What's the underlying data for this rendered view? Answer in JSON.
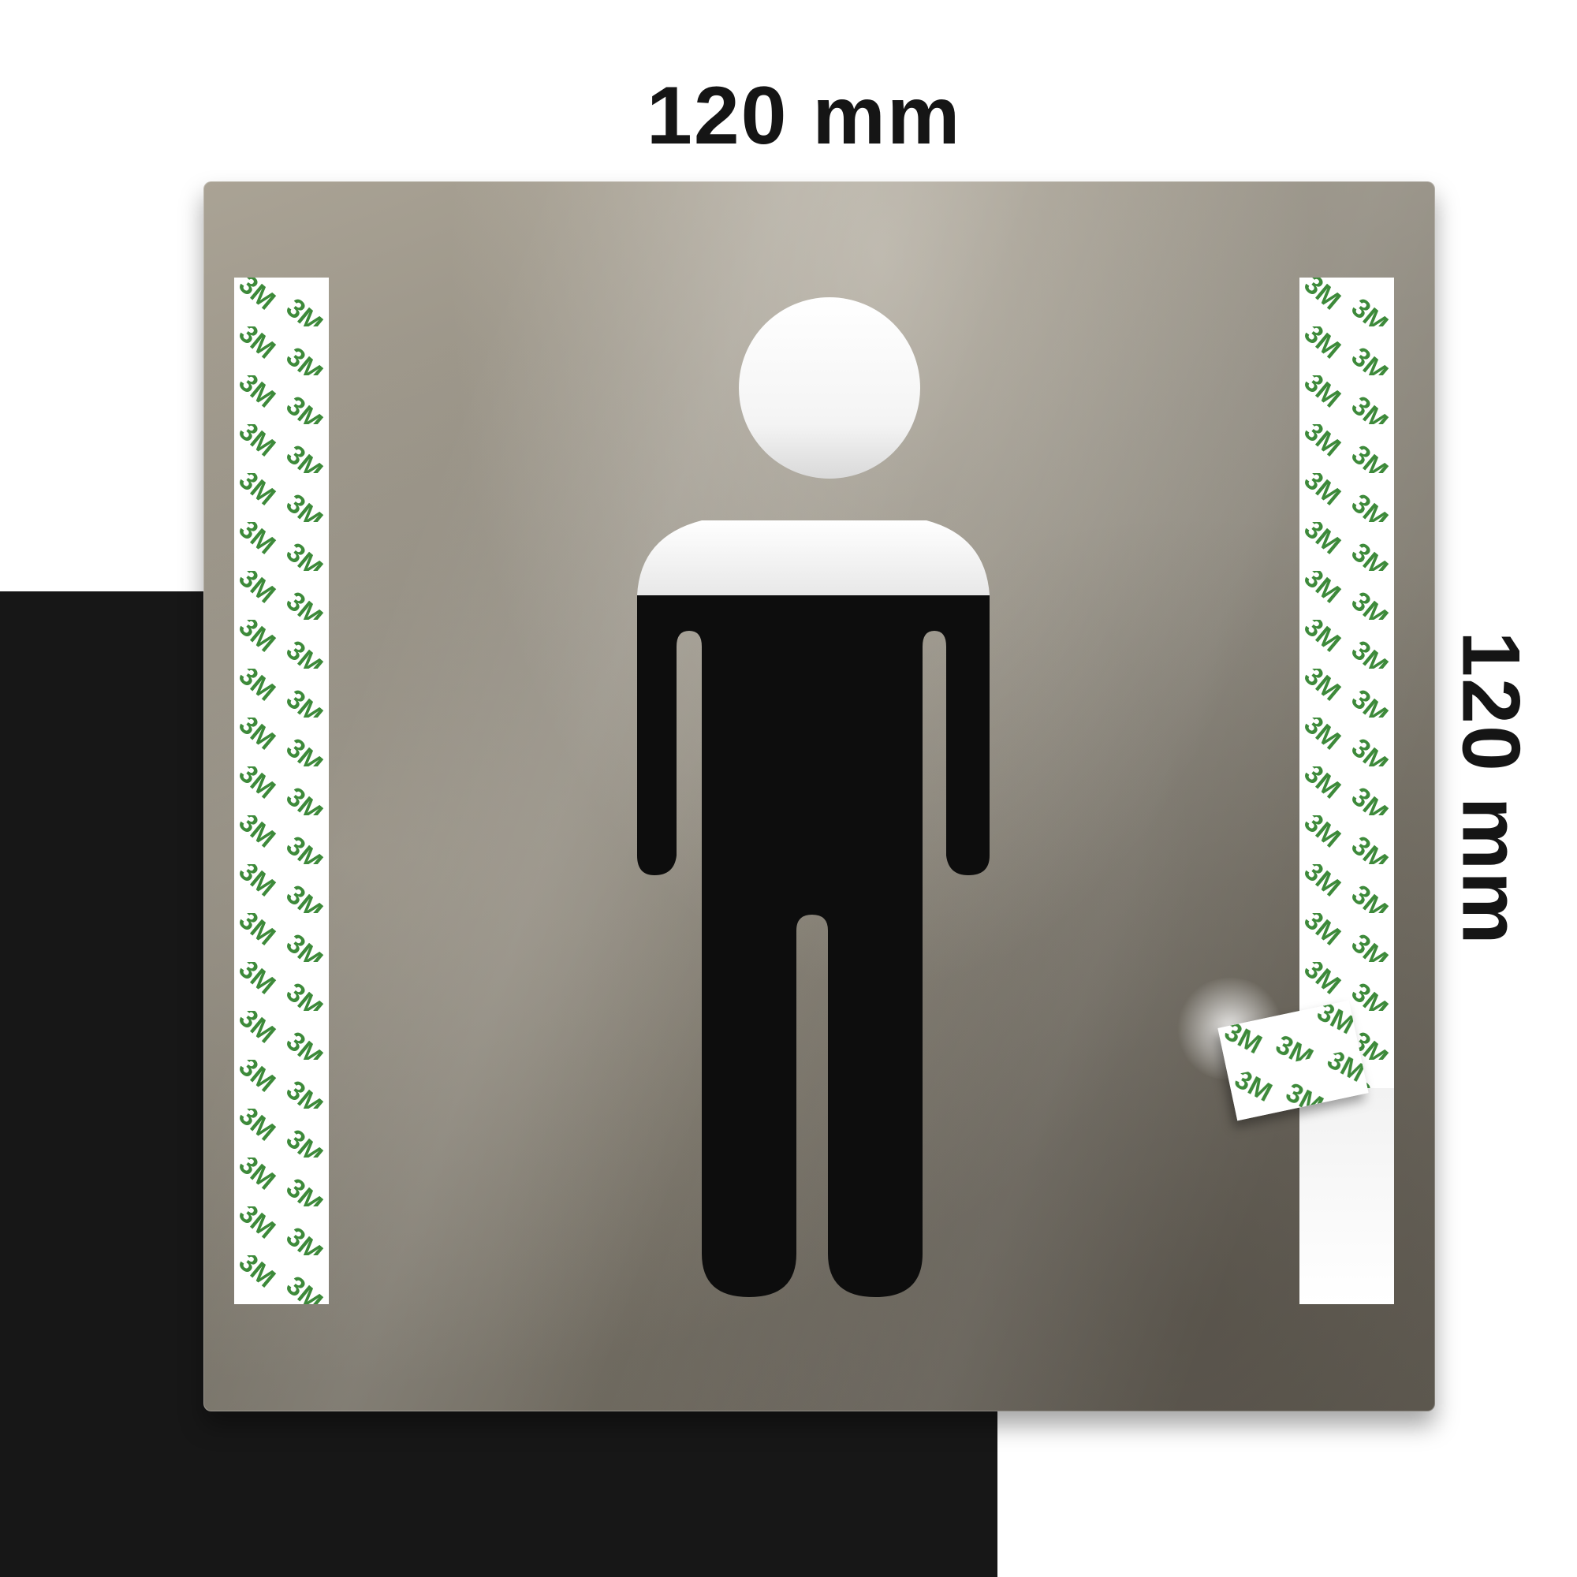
{
  "dimensions": {
    "width_label": "120 mm",
    "height_label": "120 mm"
  },
  "tape": {
    "brand_mark": "3M",
    "print_color": "#3d8a3a"
  },
  "colors": {
    "background_dark": "#171717",
    "plate_steel": "#8d887d",
    "figure_cutout": "#0d0d0d"
  }
}
